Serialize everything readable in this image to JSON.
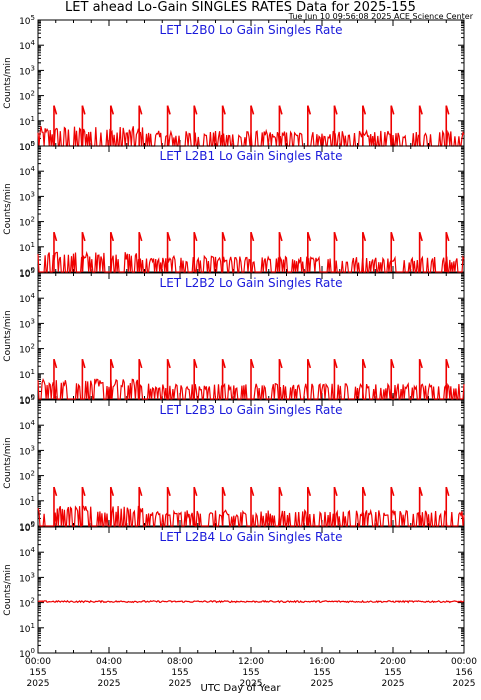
{
  "header": {
    "title": "LET ahead Lo-Gain SINGLES RATES Data for 2025-155",
    "timestamp": "Tue Jun 10 09:56:08 2025 ACE Science Center"
  },
  "xlabel": "UTC Day of Year",
  "colors": {
    "series": "#ee0000",
    "panel_title": "#1a1adb",
    "frame": "#000000"
  },
  "chart_data": [
    {
      "type": "line",
      "title": "LET L2B0 Lo Gain Singles Rate",
      "ylabel": "Counts/min",
      "yscale": "log",
      "ylim": [
        1,
        100000
      ],
      "yticks": [
        "10^0",
        "10^1",
        "10^2",
        "10^3",
        "10^4",
        "10^5"
      ],
      "xlim": [
        "2025-155 00:00",
        "2025-156 00:00"
      ],
      "baseline": 1.3,
      "spike_value": 40,
      "spike_hours": [
        0.9,
        2.5,
        4.1,
        5.7,
        7.3,
        8.8,
        10.4,
        12.0,
        13.6,
        15.2,
        16.7,
        18.3,
        19.9,
        21.5,
        23.0
      ]
    },
    {
      "type": "line",
      "title": "LET L2B1 Lo Gain Singles Rate",
      "ylabel": "Counts/min",
      "yscale": "log",
      "ylim": [
        1,
        100000
      ],
      "yticks": [
        "10^0",
        "10^1",
        "10^2",
        "10^3",
        "10^4",
        "10^5"
      ],
      "xlim": [
        "2025-155 00:00",
        "2025-156 00:00"
      ],
      "baseline": 1.5,
      "spike_value": 38,
      "spike_hours": [
        0.9,
        2.5,
        4.1,
        5.7,
        7.3,
        8.8,
        10.4,
        12.0,
        13.6,
        15.2,
        16.7,
        18.3,
        19.9,
        21.5,
        23.0
      ]
    },
    {
      "type": "line",
      "title": "LET L2B2 Lo Gain Singles Rate",
      "ylabel": "Counts/min",
      "yscale": "log",
      "ylim": [
        1,
        100000
      ],
      "yticks": [
        "10^0",
        "10^1",
        "10^2",
        "10^3",
        "10^4",
        "10^5"
      ],
      "xlim": [
        "2025-155 00:00",
        "2025-156 00:00"
      ],
      "baseline": 1.5,
      "spike_value": 38,
      "spike_hours": [
        0.9,
        2.5,
        4.1,
        5.7,
        7.3,
        8.8,
        10.4,
        12.0,
        13.6,
        15.2,
        16.7,
        18.3,
        19.9,
        21.5,
        23.0
      ]
    },
    {
      "type": "line",
      "title": "LET L2B3 Lo Gain Singles Rate",
      "ylabel": "Counts/min",
      "yscale": "log",
      "ylim": [
        1,
        100000
      ],
      "yticks": [
        "10^0",
        "10^1",
        "10^2",
        "10^3",
        "10^4",
        "10^5"
      ],
      "xlim": [
        "2025-155 00:00",
        "2025-156 00:00"
      ],
      "baseline": 1.5,
      "spike_value": 35,
      "spike_hours": [
        0.9,
        2.5,
        4.1,
        5.7,
        7.3,
        8.8,
        10.4,
        12.0,
        13.6,
        15.2,
        16.7,
        18.3,
        19.9,
        21.5,
        23.0
      ]
    },
    {
      "type": "line",
      "title": "LET L2B4 Lo Gain Singles Rate",
      "ylabel": "Counts/min",
      "yscale": "log",
      "ylim": [
        1,
        100000
      ],
      "yticks": [
        "10^0",
        "10^1",
        "10^2",
        "10^3",
        "10^4",
        "10^5"
      ],
      "xlim": [
        "2025-155 00:00",
        "2025-156 00:00"
      ],
      "baseline": 110,
      "spike_value": 130,
      "spike_hours": []
    }
  ],
  "x_ticks": [
    {
      "time": "00:00",
      "doy": "155",
      "year": "2025"
    },
    {
      "time": "04:00",
      "doy": "155",
      "year": "2025"
    },
    {
      "time": "08:00",
      "doy": "155",
      "year": "2025"
    },
    {
      "time": "12:00",
      "doy": "155",
      "year": "2025"
    },
    {
      "time": "16:00",
      "doy": "155",
      "year": "2025"
    },
    {
      "time": "20:00",
      "doy": "155",
      "year": "2025"
    },
    {
      "time": "00:00",
      "doy": "156",
      "year": "2025"
    }
  ]
}
